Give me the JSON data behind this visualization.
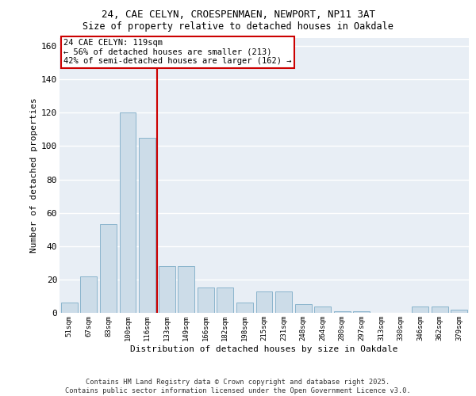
{
  "title1": "24, CAE CELYN, CROESPENMAEN, NEWPORT, NP11 3AT",
  "title2": "Size of property relative to detached houses in Oakdale",
  "xlabel": "Distribution of detached houses by size in Oakdale",
  "ylabel": "Number of detached properties",
  "categories": [
    "51sqm",
    "67sqm",
    "83sqm",
    "100sqm",
    "116sqm",
    "133sqm",
    "149sqm",
    "166sqm",
    "182sqm",
    "198sqm",
    "215sqm",
    "231sqm",
    "248sqm",
    "264sqm",
    "280sqm",
    "297sqm",
    "313sqm",
    "330sqm",
    "346sqm",
    "362sqm",
    "379sqm"
  ],
  "values": [
    6,
    22,
    53,
    120,
    105,
    28,
    28,
    15,
    15,
    6,
    13,
    13,
    5,
    4,
    1,
    1,
    0,
    0,
    4,
    4,
    2
  ],
  "bar_color": "#ccdce8",
  "bar_edge_color": "#8ab4cc",
  "vline_x": 4.5,
  "vline_color": "#cc0000",
  "annotation_text": "24 CAE CELYN: 119sqm\n← 56% of detached houses are smaller (213)\n42% of semi-detached houses are larger (162) →",
  "annotation_box_color": "#cc0000",
  "ylim": [
    0,
    165
  ],
  "yticks": [
    0,
    20,
    40,
    60,
    80,
    100,
    120,
    140,
    160
  ],
  "footer": "Contains HM Land Registry data © Crown copyright and database right 2025.\nContains public sector information licensed under the Open Government Licence v3.0.",
  "bg_color": "#e8eef5",
  "fig_color": "#ffffff",
  "grid_color": "#ffffff"
}
